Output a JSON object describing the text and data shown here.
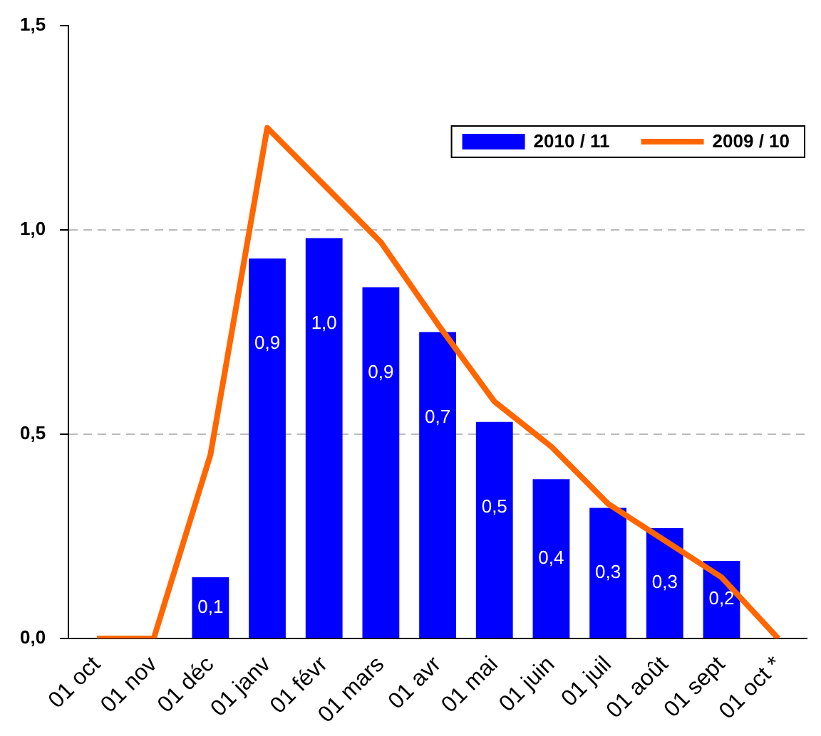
{
  "chart_data": {
    "type": "bar",
    "categories": [
      "01 oct",
      "01 nov",
      "01 déc",
      "01 janv",
      "01 févr",
      "01 mars",
      "01 avr",
      "01 mai",
      "01 juin",
      "01 juil",
      "01 août",
      "01 sept",
      "01 oct *"
    ],
    "series": [
      {
        "name": "2010 / 11",
        "color": "#0000ff",
        "values": [
          null,
          null,
          0.15,
          0.93,
          0.98,
          0.86,
          0.75,
          0.53,
          0.39,
          0.32,
          0.27,
          0.19,
          null
        ],
        "value_labels": [
          null,
          null,
          "0,1",
          "0,9",
          "1,0",
          "0,9",
          "0,7",
          "0,5",
          "0,4",
          "0,3",
          "0,3",
          "0,2",
          null
        ]
      },
      {
        "name": "2009 / 10",
        "type": "line",
        "color": "#ff6600",
        "values": [
          0,
          0,
          0.45,
          1.25,
          1.11,
          0.97,
          0.77,
          0.58,
          0.47,
          0.33,
          0.24,
          0.15,
          0
        ]
      }
    ],
    "ylim": [
      0,
      1.5
    ],
    "yticks": [
      {
        "value": 0,
        "label": "0,0"
      },
      {
        "value": 0.5,
        "label": "0,5"
      },
      {
        "value": 1,
        "label": "1,0"
      },
      {
        "value": 1.5,
        "label": "1,5"
      }
    ],
    "grid": "y",
    "legend": "top right",
    "marker": "none"
  }
}
